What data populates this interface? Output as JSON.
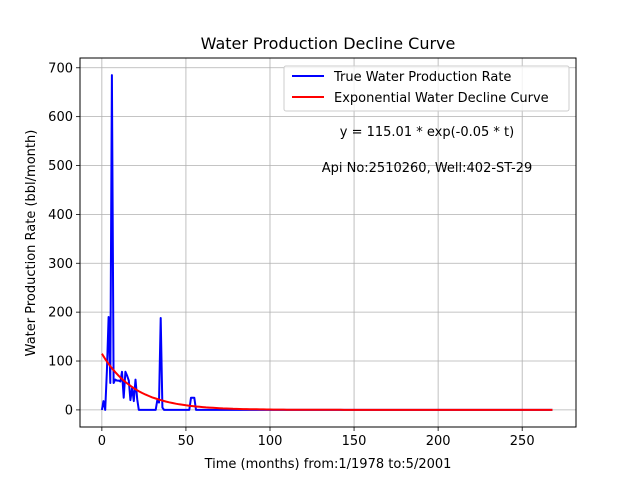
{
  "chart_data": {
    "type": "line",
    "title": "Water Production Decline Curve",
    "xlabel": "Time (months) from:1/1978 to:5/2001",
    "ylabel": "Water Production Rate (bbl/month)",
    "xlim": [
      -13,
      282
    ],
    "ylim": [
      -35,
      720
    ],
    "xticks": [
      0,
      50,
      100,
      150,
      200,
      250
    ],
    "yticks": [
      0,
      100,
      200,
      300,
      400,
      500,
      600,
      700
    ],
    "grid": true,
    "legend_position": "upper-right",
    "annotations": [
      "y = 115.01 * exp(-0.05 * t)",
      "Api No:2510260, Well:402-ST-29"
    ],
    "series": [
      {
        "name": "True Water Production Rate",
        "color": "#0000ff",
        "style": "points",
        "x": [
          0,
          1,
          2,
          3,
          4,
          5,
          6,
          7,
          8,
          9,
          10,
          11,
          12,
          13,
          14,
          15,
          16,
          17,
          18,
          19,
          20,
          21,
          22,
          23,
          24,
          25,
          26,
          27,
          28,
          29,
          30,
          31,
          32,
          33,
          34,
          35,
          36,
          37,
          38,
          39,
          40,
          41,
          42,
          43,
          44,
          45,
          46,
          47,
          48,
          49,
          50,
          51,
          52,
          53,
          54,
          55,
          56,
          57,
          58,
          59,
          60,
          70,
          80,
          100,
          150,
          200,
          268
        ],
        "y": [
          0,
          18,
          0,
          80,
          190,
          55,
          685,
          55,
          62,
          60,
          60,
          58,
          78,
          25,
          78,
          70,
          60,
          20,
          45,
          18,
          62,
          22,
          0,
          0,
          0,
          0,
          0,
          0,
          0,
          0,
          0,
          0,
          0,
          20,
          15,
          188,
          5,
          0,
          0,
          0,
          0,
          0,
          0,
          0,
          0,
          0,
          0,
          0,
          0,
          0,
          0,
          0,
          0,
          25,
          25,
          25,
          0,
          0,
          0,
          0,
          0,
          0,
          0,
          0,
          0,
          0,
          0
        ]
      },
      {
        "name": "Exponential Water Decline Curve",
        "color": "#ff0000",
        "style": "function",
        "a": 115.01,
        "b": -0.05,
        "x_start": 0,
        "x_end": 268
      }
    ]
  }
}
